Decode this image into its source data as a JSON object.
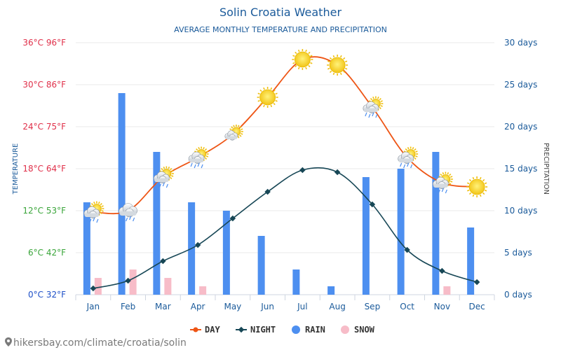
{
  "chart_data": {
    "type": "line+bar",
    "title": "Solin Croatia Weather",
    "subtitle": "AVERAGE MONTHLY TEMPERATURE AND PRECIPITATION",
    "ylabel_left": "TEMPERATURE",
    "ylabel_right": "PRECIPITATION",
    "categories": [
      "Jan",
      "Feb",
      "Mar",
      "Apr",
      "May",
      "Jun",
      "Jul",
      "Aug",
      "Sep",
      "Oct",
      "Nov",
      "Dec"
    ],
    "left_ticks": [
      "0°C 32°F",
      "6°C 42°F",
      "12°C 53°F",
      "18°C 64°F",
      "24°C 75°F",
      "30°C 86°F",
      "36°C 96°F"
    ],
    "left_tick_values": [
      0,
      6,
      12,
      18,
      24,
      30,
      36
    ],
    "left_tick_colors": [
      "#1e50c8",
      "#3aa53a",
      "#3aa53a",
      "#e0304a",
      "#e0304a",
      "#e0304a",
      "#e0304a"
    ],
    "right_ticks": [
      "0 days",
      "5 days",
      "10 days",
      "15 days",
      "20 days",
      "25 days",
      "30 days"
    ],
    "right_tick_values": [
      0,
      5,
      10,
      15,
      20,
      25,
      30
    ],
    "temp_range": [
      0,
      36
    ],
    "days_range": [
      0,
      30
    ],
    "series": [
      {
        "name": "DAY",
        "kind": "line",
        "color": "#ee5515",
        "unit": "°C",
        "values": [
          11.8,
          12.0,
          16.8,
          19.6,
          22.9,
          28.2,
          33.6,
          32.8,
          26.8,
          19.6,
          16.0,
          15.4
        ]
      },
      {
        "name": "NIGHT",
        "kind": "line",
        "color": "#174756",
        "unit": "°C",
        "values": [
          0.9,
          2.0,
          4.8,
          7.1,
          10.9,
          14.7,
          17.8,
          17.5,
          12.9,
          6.4,
          3.4,
          1.8
        ]
      },
      {
        "name": "RAIN",
        "kind": "bar",
        "color": "#4d8ff0",
        "unit": "days",
        "values": [
          11,
          24,
          17,
          11,
          10,
          7,
          3,
          1,
          14,
          15,
          17,
          8
        ]
      },
      {
        "name": "SNOW",
        "kind": "bar",
        "color": "#f7bcc8",
        "unit": "days",
        "values": [
          2,
          3,
          2,
          1,
          0,
          0,
          0,
          0,
          0,
          0,
          1,
          0
        ]
      }
    ],
    "weather_icons": [
      "sun-cloud-rain",
      "cloud-rain",
      "sun-cloud-rain",
      "sun-cloud-rain",
      "sun-cloud",
      "sun",
      "sun",
      "sun",
      "sun-cloud-rain",
      "sun-cloud-rain",
      "sun-cloud-rain",
      "sun"
    ],
    "legend": [
      "DAY",
      "NIGHT",
      "RAIN",
      "SNOW"
    ],
    "legend_position": "bottom-center",
    "grid": true
  },
  "footer": {
    "source": "hikersbay.com/climate/croatia/solin"
  },
  "colors": {
    "title": "#1a5a9a",
    "right_axis": "#1a5a9a",
    "grid": "#e8e8e8"
  }
}
